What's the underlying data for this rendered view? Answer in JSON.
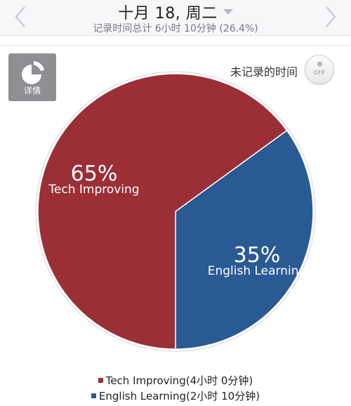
{
  "header": {
    "date": "十月 18, 周二",
    "subtitle": "记录时间总计 6小时 10分钟 (26.4%)"
  },
  "toolbar": {
    "details_label": "详情",
    "unrecorded_label": "未记录的时间",
    "toggle_label": "OFF"
  },
  "colors": {
    "tech": "#9a2f35",
    "english": "#2a5a94"
  },
  "chart_data": {
    "type": "pie",
    "categories": [
      "Tech Improving",
      "English Learning"
    ],
    "values": [
      65,
      35
    ],
    "percent_labels": [
      "65%",
      "35%"
    ],
    "legend": [
      "Tech Improving(4小时 0分钟)",
      "English Learning(2小时 10分钟)"
    ]
  }
}
